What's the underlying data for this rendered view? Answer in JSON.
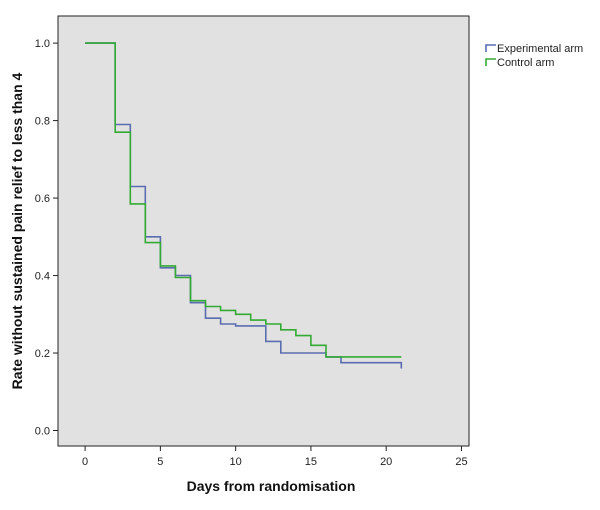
{
  "chart_data": {
    "type": "line",
    "title": "",
    "xlabel": "Days from randomisation",
    "ylabel": "Rate without sustained pain relief to less than 4",
    "xlim": [
      -1.8,
      25.5
    ],
    "ylim": [
      -0.04,
      1.07
    ],
    "x_ticks": [
      0,
      5,
      10,
      15,
      20,
      25
    ],
    "y_ticks": [
      0.0,
      0.2,
      0.4,
      0.6,
      0.8,
      1.0
    ],
    "x_tick_labels": [
      "0",
      "5",
      "10",
      "15",
      "20",
      "25"
    ],
    "y_tick_labels": [
      "0.0",
      "0.2",
      "0.4",
      "0.6",
      "0.8",
      "1.0"
    ],
    "step": true,
    "grid": false,
    "legend_position": "top-right, outside plot",
    "plot_background": "#e1e1e1",
    "series": [
      {
        "name": "Experimental arm",
        "color": "#5a6db0",
        "x": [
          0,
          2,
          3,
          4,
          5,
          6,
          7,
          8,
          9,
          10,
          11,
          12,
          13,
          14,
          15,
          16,
          17,
          18,
          21
        ],
        "y": [
          1.0,
          0.79,
          0.63,
          0.5,
          0.42,
          0.4,
          0.33,
          0.29,
          0.275,
          0.27,
          0.27,
          0.23,
          0.2,
          0.2,
          0.2,
          0.19,
          0.175,
          0.175,
          0.16
        ]
      },
      {
        "name": "Control arm",
        "color": "#33aa33",
        "x": [
          0,
          2,
          3,
          4,
          5,
          6,
          7,
          8,
          9,
          10,
          11,
          12,
          13,
          14,
          15,
          16,
          17,
          18,
          21
        ],
        "y": [
          1.0,
          0.77,
          0.585,
          0.485,
          0.425,
          0.395,
          0.335,
          0.32,
          0.31,
          0.3,
          0.285,
          0.275,
          0.26,
          0.245,
          0.22,
          0.19,
          0.19,
          0.19,
          0.19
        ]
      }
    ]
  }
}
